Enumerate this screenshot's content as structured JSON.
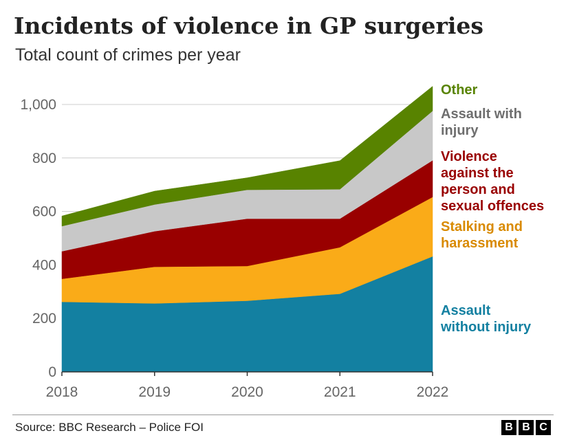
{
  "header": {
    "title": "Incidents of violence in GP surgeries",
    "subtitle": "Total count of crimes per year"
  },
  "footer": {
    "source": "Source: BBC Research – Police FOI",
    "logo_letters": [
      "B",
      "B",
      "C"
    ]
  },
  "chart_data": {
    "type": "area",
    "stacked": true,
    "x": [
      "2018",
      "2019",
      "2020",
      "2021",
      "2022"
    ],
    "ylim": [
      0,
      1000
    ],
    "yticks": [
      "0",
      "200",
      "400",
      "600",
      "800",
      "1,000"
    ],
    "ytick_values": [
      0,
      200,
      400,
      600,
      800,
      1000
    ],
    "grid": true,
    "legend_placement": "right",
    "series": [
      {
        "name": "Assault without injury",
        "color": "#1380A1",
        "values": [
          262,
          256,
          266,
          292,
          432
        ]
      },
      {
        "name": "Stalking and harassment",
        "color": "#FAAB18",
        "values": [
          86,
          137,
          130,
          174,
          222
        ]
      },
      {
        "name": "Violence against the person and sexual offences",
        "color": "#990000",
        "values": [
          103,
          133,
          177,
          107,
          137
        ]
      },
      {
        "name": "Assault with injury",
        "color": "#C8C8C8",
        "values": [
          94,
          100,
          108,
          110,
          185
        ]
      },
      {
        "name": "Other",
        "color": "#588300",
        "values": [
          38,
          50,
          45,
          107,
          92
        ]
      }
    ],
    "legend": [
      {
        "lines": [
          "Other"
        ],
        "color": "#588300"
      },
      {
        "lines": [
          "Assault with",
          "injury"
        ],
        "color": "#6E6E6E"
      },
      {
        "lines": [
          "Violence",
          "against the",
          "person and",
          "sexual offences"
        ],
        "color": "#990000"
      },
      {
        "lines": [
          "Stalking and",
          "harassment"
        ],
        "color": "#D98A00"
      },
      {
        "lines": [
          "Assault",
          "without injury"
        ],
        "color": "#1380A1"
      }
    ]
  }
}
